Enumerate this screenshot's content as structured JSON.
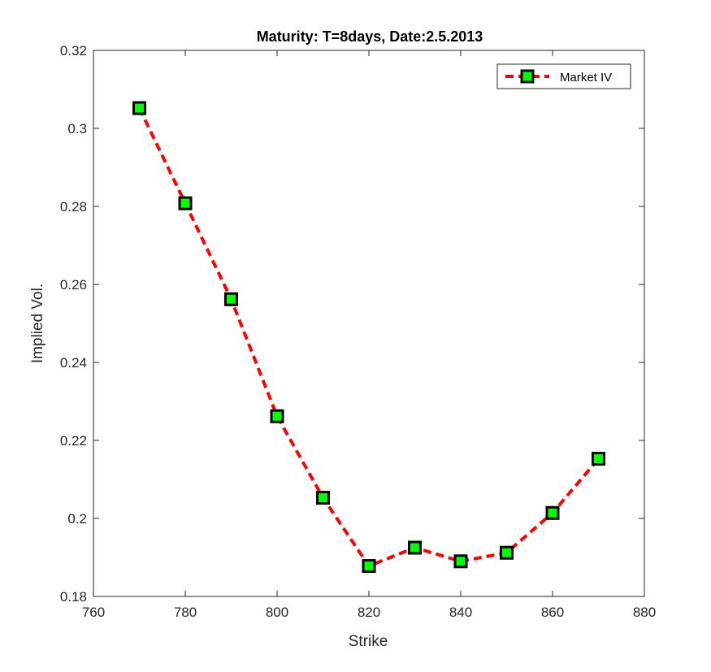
{
  "chart_data": {
    "type": "line",
    "title": "Maturity: T=8days, Date:2.5.2013",
    "xlabel": "Strike",
    "ylabel": "Implied Vol.",
    "xlim": [
      760,
      880
    ],
    "ylim": [
      0.18,
      0.32
    ],
    "xticks": [
      "760",
      "780",
      "800",
      "820",
      "840",
      "860",
      "880"
    ],
    "yticks": [
      "0.18",
      "0.2",
      "0.22",
      "0.24",
      "0.26",
      "0.28",
      "0.3",
      "0.32"
    ],
    "grid": false,
    "legend_position": "top-right",
    "series": [
      {
        "name": "Market IV",
        "line_color": "#ff0000",
        "line_style": "dashed",
        "marker": "square",
        "marker_face": "#00ff00",
        "marker_edge": "#000000",
        "x": [
          770,
          780,
          790,
          800,
          810,
          820,
          830,
          840,
          850,
          860,
          870
        ],
        "y": [
          0.3052,
          0.2808,
          0.2562,
          0.2262,
          0.2053,
          0.1878,
          0.1925,
          0.189,
          0.1912,
          0.2014,
          0.2153
        ]
      }
    ]
  }
}
